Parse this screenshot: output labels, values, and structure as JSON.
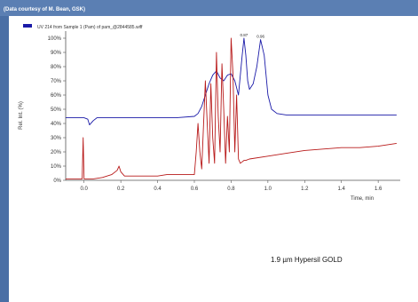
{
  "credit": "(Data courtesy of M. Bean, GSK)",
  "caption": "1.9 µm Hypersil GOLD",
  "chart_data": {
    "type": "line",
    "legend_text": "UV 214 from Sample 1 (Pam) of pam_@2844585.wiff",
    "xlabel": "Time, min",
    "ylabel": "Rel. Int. (%)",
    "xlim": [
      -0.1,
      1.72
    ],
    "ylim": [
      0,
      105
    ],
    "x_ticks": [
      0.0,
      0.2,
      0.4,
      0.6,
      0.8,
      1.0,
      1.2,
      1.4,
      1.6
    ],
    "x_tick_labels": [
      "0.0",
      "0.2",
      "0.4",
      "0.6",
      "0.8",
      "1.0",
      "1.2",
      "1.4",
      "1.6"
    ],
    "y_ticks": [
      0,
      10,
      20,
      30,
      40,
      50,
      60,
      70,
      80,
      90,
      100
    ],
    "y_tick_labels": [
      "0%",
      "10%",
      "20%",
      "30%",
      "40%",
      "50%",
      "60%",
      "70%",
      "80%",
      "90%",
      "100%"
    ],
    "peak_labels": [
      {
        "text": "0.87",
        "x": 0.87,
        "y": 100
      },
      {
        "text": "0.96",
        "x": 0.96,
        "y": 99
      }
    ],
    "series": [
      {
        "color": "#1a1aa8",
        "x": [
          -0.1,
          -0.02,
          0.0,
          0.02,
          0.03,
          0.05,
          0.07,
          0.1,
          0.2,
          0.3,
          0.4,
          0.5,
          0.6,
          0.62,
          0.64,
          0.66,
          0.68,
          0.7,
          0.72,
          0.74,
          0.76,
          0.78,
          0.8,
          0.82,
          0.84,
          0.86,
          0.87,
          0.88,
          0.89,
          0.9,
          0.92,
          0.94,
          0.96,
          0.98,
          1.0,
          1.02,
          1.05,
          1.1,
          1.2,
          1.3,
          1.4,
          1.5,
          1.6,
          1.7
        ],
        "y": [
          44,
          44,
          44,
          43,
          39,
          42,
          44,
          44,
          44,
          44,
          44,
          44,
          45,
          47,
          52,
          60,
          68,
          74,
          77,
          72,
          70,
          74,
          75,
          70,
          60,
          88,
          100,
          88,
          70,
          64,
          68,
          80,
          99,
          88,
          60,
          50,
          47,
          46,
          46,
          46,
          46,
          46,
          46,
          46
        ]
      },
      {
        "color": "#b81a1a",
        "x": [
          -0.1,
          -0.02,
          -0.01,
          -0.005,
          0.0,
          0.005,
          0.01,
          0.05,
          0.1,
          0.15,
          0.18,
          0.19,
          0.2,
          0.22,
          0.25,
          0.3,
          0.35,
          0.4,
          0.45,
          0.5,
          0.55,
          0.6,
          0.61,
          0.62,
          0.63,
          0.64,
          0.66,
          0.67,
          0.68,
          0.69,
          0.7,
          0.71,
          0.72,
          0.73,
          0.74,
          0.75,
          0.76,
          0.77,
          0.78,
          0.79,
          0.8,
          0.81,
          0.82,
          0.83,
          0.84,
          0.85,
          0.86,
          0.87,
          0.88,
          0.9,
          1.0,
          1.1,
          1.2,
          1.3,
          1.4,
          1.5,
          1.6,
          1.7
        ],
        "y": [
          1,
          1,
          1,
          30,
          1,
          1,
          1,
          1,
          2,
          4,
          7,
          10,
          6,
          3,
          3,
          3,
          3,
          3,
          4,
          4,
          4,
          4,
          20,
          40,
          20,
          8,
          70,
          40,
          12,
          68,
          30,
          12,
          90,
          45,
          20,
          82,
          50,
          12,
          45,
          20,
          100,
          75,
          20,
          60,
          15,
          12,
          13,
          14,
          14,
          15,
          17,
          19,
          21,
          22,
          23,
          23,
          24,
          26
        ]
      }
    ]
  }
}
